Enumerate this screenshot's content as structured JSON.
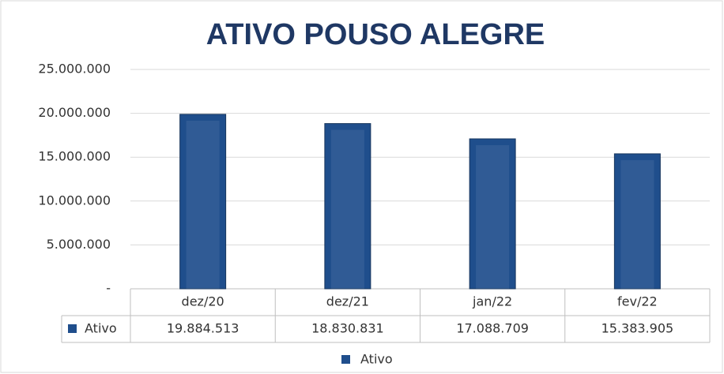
{
  "chart_data": {
    "type": "bar",
    "title": "ATIVO POUSO ALEGRE",
    "categories": [
      "dez/20",
      "dez/21",
      "jan/22",
      "fev/22"
    ],
    "series": [
      {
        "name": "Ativo",
        "color": "#1f4e8c",
        "values": [
          19884513,
          18830831,
          17088709,
          15383905
        ],
        "value_labels": [
          "19.884.513",
          "18.830.831",
          "17.088.709",
          "15.383.905"
        ]
      }
    ],
    "ylim": [
      0,
      25000000
    ],
    "yticks": [
      {
        "value": 0,
        "label": "-"
      },
      {
        "value": 5000000,
        "label": "5.000.000"
      },
      {
        "value": 10000000,
        "label": "10.000.000"
      },
      {
        "value": 15000000,
        "label": "15.000.000"
      },
      {
        "value": 20000000,
        "label": "20.000.000"
      },
      {
        "value": 25000000,
        "label": "25.000.000"
      }
    ],
    "grid": true
  }
}
